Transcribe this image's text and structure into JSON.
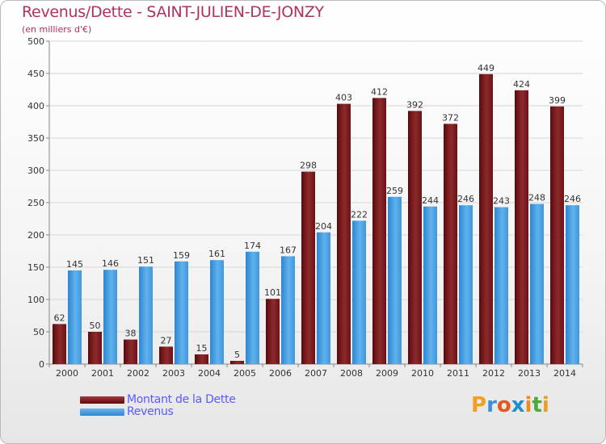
{
  "chart_data": {
    "type": "bar",
    "title": "Revenus/Dette - SAINT-JULIEN-DE-JONZY",
    "subtitle": "(en milliers d'€)",
    "categories": [
      "2000",
      "2001",
      "2002",
      "2003",
      "2004",
      "2005",
      "2006",
      "2007",
      "2008",
      "2009",
      "2010",
      "2011",
      "2012",
      "2013",
      "2014"
    ],
    "series": [
      {
        "name": "Montant de la Dette",
        "values": [
          62,
          50,
          38,
          27,
          15,
          5,
          101,
          298,
          403,
          412,
          392,
          372,
          449,
          424,
          399
        ],
        "color": "#7d1d20"
      },
      {
        "name": "Revenus",
        "values": [
          145,
          146,
          151,
          159,
          161,
          174,
          167,
          204,
          222,
          259,
          244,
          246,
          243,
          248,
          246
        ],
        "color": "#4aa3e6"
      }
    ],
    "ylim": [
      0,
      500
    ],
    "yticks": [
      0,
      50,
      100,
      150,
      200,
      250,
      300,
      350,
      400,
      450,
      500
    ],
    "grid": true,
    "legend": "bottom-left"
  },
  "legend": {
    "dette_label": "Montant de la Dette",
    "revenus_label": "Revenus"
  },
  "logo": {
    "letters": [
      "P",
      "r",
      "o",
      "x",
      "i",
      "t",
      "i"
    ],
    "colors": [
      "#f0a020",
      "#3a8fd8",
      "#e05a20",
      "#1e90d0",
      "#f08a20",
      "#4aaa3a",
      "#e8a020"
    ]
  }
}
